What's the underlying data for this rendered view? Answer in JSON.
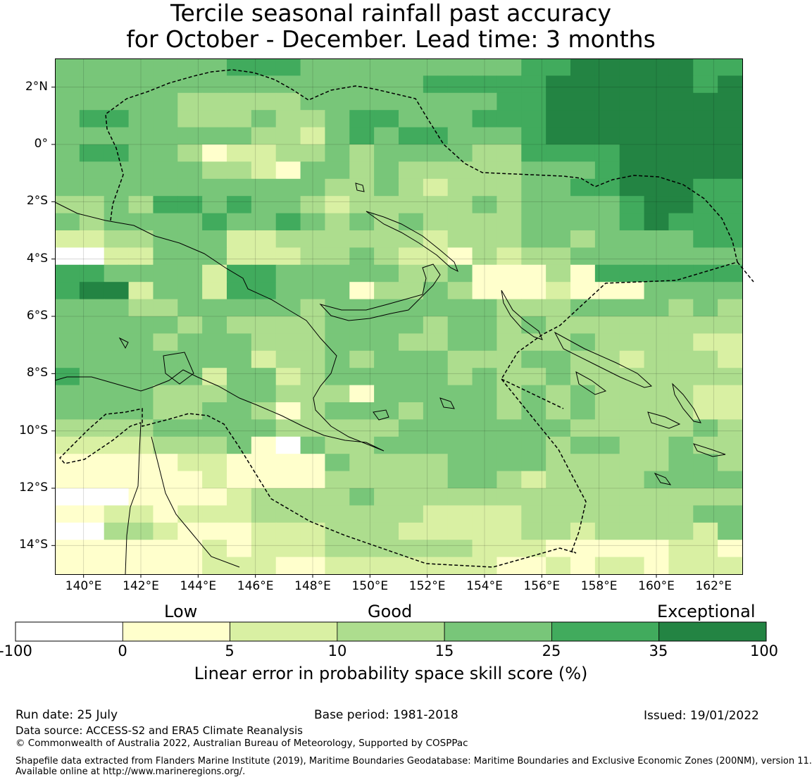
{
  "title_line1": "Tercile seasonal rainfall past accuracy",
  "title_line2": "for October - December. Lead time: 3 months",
  "lon_labels": [
    "140°E",
    "142°E",
    "144°E",
    "146°E",
    "148°E",
    "150°E",
    "152°E",
    "154°E",
    "156°E",
    "158°E",
    "160°E",
    "162°E"
  ],
  "lat_labels": [
    "2°N",
    "0°",
    "2°S",
    "4°S",
    "6°S",
    "8°S",
    "10°S",
    "12°S",
    "14°S"
  ],
  "colorbar": {
    "categories": [
      "Low",
      "Good",
      "Exceptional"
    ],
    "ticks": [
      "-100",
      "0",
      "5",
      "10",
      "15",
      "25",
      "35",
      "100"
    ],
    "colors": [
      "#ffffff",
      "#ffffcc",
      "#d9f0a3",
      "#addd8e",
      "#78c679",
      "#41ab5d",
      "#238443"
    ],
    "label": "Linear error in probability space skill score (%)"
  },
  "skill_grid": [
    "4444444555444444444556666655",
    "4444444444444445555566666656",
    "4444433333444444445566666666",
    "4554433343345544455566666666",
    "4444444433245455444566666666",
    "4554431223343444433555566666",
    "4444443321443433333444566666",
    "4444444444433432333445566655",
    "3343554544323333343444456655",
    "4344445445434343333444456555",
    "2233444223333332333443444455",
    "0022444222334322132334444444",
    "5544442554444433411131555555",
    "5662442554441334311121114444",
    "4443344444344444443334444343",
    "4444434333344443443433333333",
    "4444344433344433443334333322",
    "4444444423343444333443323332",
    "5444442442344444343343333333",
    "4444333443331444443434333322",
    "4444334431344434443434333322",
    "3333444443333344444443333343",
    "2222333410433444444434433433",
    "1111122111143333444433333443",
    "1111112111133333443233334444",
    "0001111233334333333333333333",
    "1122122233333332222333333344",
    "0033211122233322222332333324",
    "1111112122233333322211111221",
    "1111112221122222221121221222"
  ],
  "footer": {
    "run_date": "Run date: 25 July",
    "base_period": "Base period: 1981-2018",
    "issued": "Issued: 19/01/2022",
    "data_source": "Data source: ACCESS-S2 and ERA5 Climate Reanalysis",
    "copyright": "© Commonwealth of Australia 2022, Australian Bureau of Meteorology, Supported by COSPPac",
    "shapefile_line1": "Shapefile data extracted from Flanders Marine Institute (2019), Maritime Boundaries Geodatabase: Maritime Boundaries and Exclusive Economic Zones (200NM), version 11.",
    "shapefile_line2": "Available online at http://www.marineregions.org/."
  }
}
